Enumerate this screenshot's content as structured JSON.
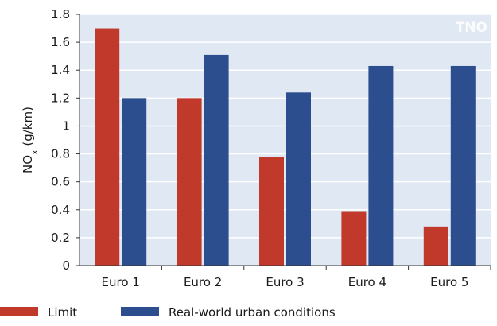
{
  "chart_data": {
    "type": "bar",
    "categories": [
      "Euro 1",
      "Euro 2",
      "Euro 3",
      "Euro 4",
      "Euro 5"
    ],
    "series": [
      {
        "name": "Limit",
        "values": [
          1.7,
          1.2,
          0.78,
          0.39,
          0.28
        ],
        "color": "#c0392b"
      },
      {
        "name": "Real-world urban conditions",
        "values": [
          1.2,
          1.51,
          1.24,
          1.43,
          1.43
        ],
        "color": "#2c4e8f"
      }
    ],
    "yticks": [
      "0",
      "0.2",
      "0.4",
      "0.6",
      "0.8",
      "1",
      "1.2",
      "1.4",
      "1.6",
      "1.8"
    ],
    "ylim": [
      0,
      1.8
    ],
    "ylabel": {
      "main": "NO",
      "sub": "x",
      "unit": " (g/km)"
    },
    "xlabel": "",
    "grid": true,
    "legend_position": "bottom",
    "watermark": "TNO",
    "colors": {
      "plot_background": "#dfe8f3",
      "gridline": "#ffffff",
      "axis": "#333333"
    }
  }
}
